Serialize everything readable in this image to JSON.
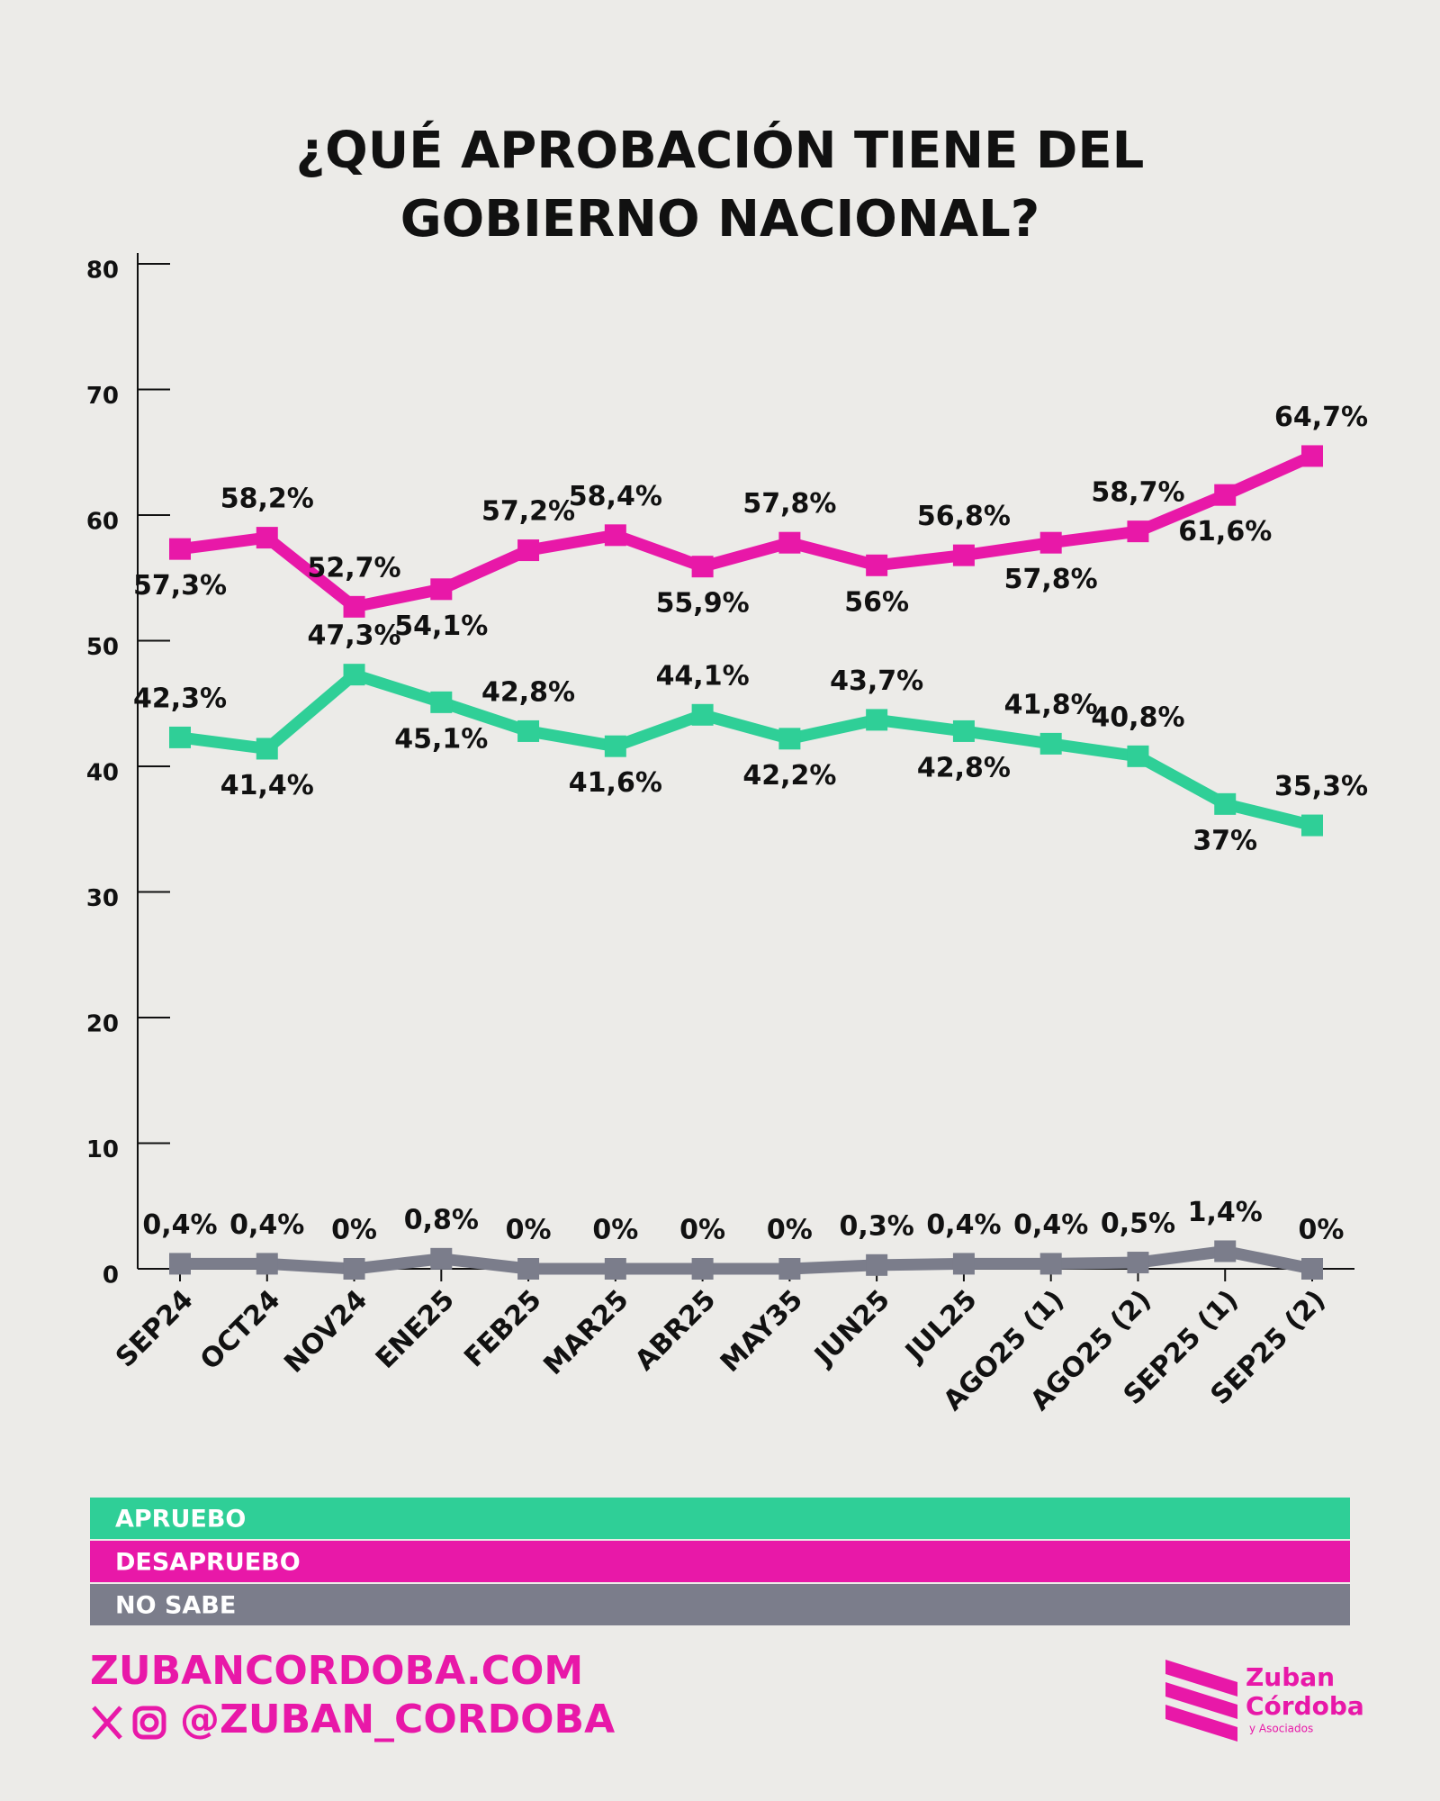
{
  "chart_data": {
    "type": "line",
    "title": "¿QUÉ APROBACIÓN TIENE DEL GOBIERNO NACIONAL?",
    "categories": [
      "SEP24",
      "OCT24",
      "NOV24",
      "ENE25",
      "FEB25",
      "MAR25",
      "ABR25",
      "MAY35",
      "JUN25",
      "JUL25",
      "AGO25 (1)",
      "AGO25 (2)",
      "SEP25 (1)",
      "SEP25 (2)"
    ],
    "series": [
      {
        "name": "APRUEBO",
        "color": "#2fcf97",
        "values": [
          42.3,
          41.4,
          47.3,
          45.1,
          42.8,
          41.6,
          44.1,
          42.2,
          43.7,
          42.8,
          41.8,
          40.8,
          37,
          35.3
        ],
        "value_labels": [
          "42,3%",
          "41,4%",
          "47,3%",
          "45,1%",
          "42,8%",
          "41,6%",
          "44,1%",
          "42,2%",
          "43,7%",
          "42,8%",
          "41,8%",
          "40,8%",
          "37%",
          "35,3%"
        ]
      },
      {
        "name": "DESAPRUEBO",
        "color": "#e818a8",
        "values": [
          57.3,
          58.2,
          52.7,
          54.1,
          57.2,
          58.4,
          55.9,
          57.8,
          56,
          56.8,
          57.8,
          58.7,
          61.6,
          64.7
        ],
        "value_labels": [
          "57,3%",
          "58,2%",
          "52,7%",
          "54,1%",
          "57,2%",
          "58,4%",
          "55,9%",
          "57,8%",
          "56%",
          "56,8%",
          "57,8%",
          "58,7%",
          "61,6%",
          "64,7%"
        ]
      },
      {
        "name": "NO SABE",
        "color": "#7b7d8b",
        "values": [
          0.4,
          0.4,
          0,
          0.8,
          0,
          0,
          0,
          0,
          0.3,
          0.4,
          0.4,
          0.5,
          1.4,
          0
        ],
        "value_labels": [
          "0,4%",
          "0,4%",
          "0%",
          "0,8%",
          "0%",
          "0%",
          "0%",
          "0%",
          "0,3%",
          "0,4%",
          "0,4%",
          "0,5%",
          "1,4%",
          "0%"
        ]
      }
    ],
    "ylim": [
      0,
      80
    ],
    "yticks": [
      0,
      10,
      20,
      30,
      40,
      50,
      60,
      70,
      80
    ],
    "footer": {
      "website": "ZUBANCORDOBA.COM",
      "handle": "@ZUBAN_CORDOBA"
    },
    "logo": {
      "line1": "Zuban",
      "line2": "Córdoba",
      "line3": "y Asociados"
    }
  }
}
